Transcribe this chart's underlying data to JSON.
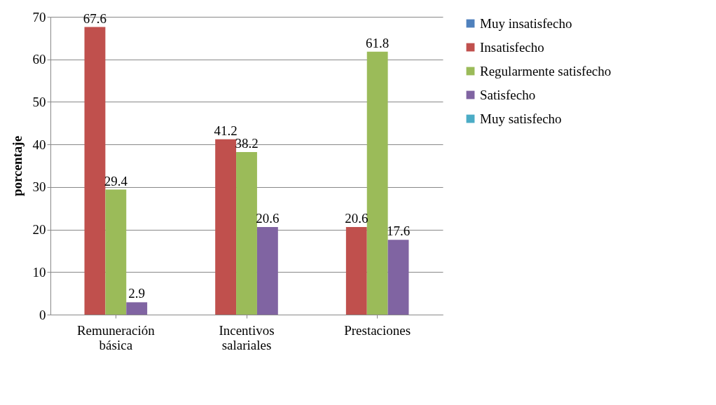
{
  "chart_data": {
    "type": "bar",
    "ylabel": "porcentaje",
    "categories": [
      "Remuneración básica",
      "Incentivos salariales",
      "Prestaciones"
    ],
    "series": [
      {
        "name": "Muy insatisfecho",
        "color": "#4f81bd",
        "values": [
          0,
          0,
          0
        ],
        "value_labels": [
          null,
          null,
          null
        ]
      },
      {
        "name": "Insatisfecho",
        "color": "#c0504d",
        "values": [
          67.6,
          41.2,
          20.6
        ],
        "value_labels": [
          "67.6",
          "41.2",
          "20.6"
        ]
      },
      {
        "name": "Regularmente satisfecho",
        "color": "#9bbb59",
        "values": [
          29.4,
          38.2,
          61.8
        ],
        "value_labels": [
          "29.4",
          "38.2",
          "61.8"
        ]
      },
      {
        "name": "Satisfecho",
        "color": "#8064a2",
        "values": [
          2.9,
          20.6,
          17.6
        ],
        "value_labels": [
          "2.9",
          "20.6",
          "17.6"
        ]
      },
      {
        "name": "Muy satisfecho",
        "color": "#4bacc6",
        "values": [
          0,
          0,
          0
        ],
        "value_labels": [
          null,
          null,
          null
        ]
      }
    ],
    "ylim": [
      0,
      70
    ],
    "yticks": [
      0,
      10,
      20,
      30,
      40,
      50,
      60,
      70
    ],
    "grid": "y",
    "legend": "right"
  }
}
